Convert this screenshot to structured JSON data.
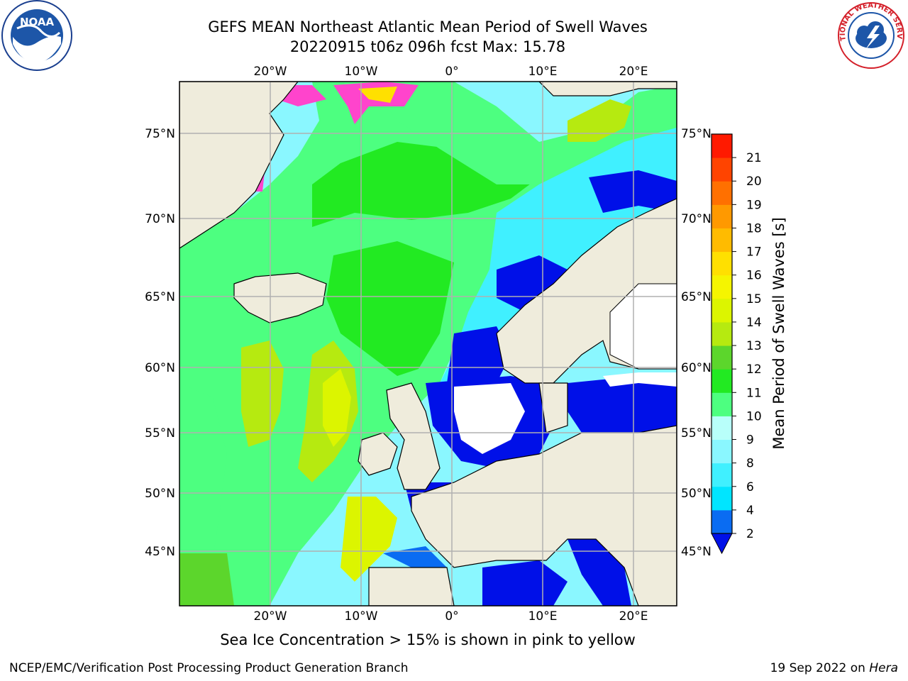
{
  "title_line1": "GEFS MEAN Northeast Atlantic Mean Period of Swell Waves",
  "title_line2": "20220915 t06z 096h fcst   Max: 15.78",
  "logos": {
    "left": "noaa-logo",
    "right": "national-weather-service-logo",
    "right_text": "NATIONAL WEATHER SERVICE"
  },
  "map": {
    "lon_labels": [
      "20°W",
      "10°W",
      "0°",
      "10°E",
      "20°E"
    ],
    "lat_labels": [
      "75°N",
      "70°N",
      "65°N",
      "60°N",
      "55°N",
      "50°N",
      "45°N"
    ],
    "land_color": "#efecdc",
    "grid_color": "#b0b0b0"
  },
  "colorbar": {
    "label": "Mean Period of Swell Waves [s]",
    "ticks": [
      "2",
      "4",
      "6",
      "8",
      "9",
      "10",
      "11",
      "12",
      "13",
      "14",
      "15",
      "16",
      "17",
      "18",
      "19",
      "20",
      "21"
    ],
    "colors": [
      "#0a6cf2",
      "#00e5ff",
      "#40f0ff",
      "#8af7ff",
      "#b8fffa",
      "#4dff80",
      "#22ea22",
      "#5cd62c",
      "#b6ea10",
      "#dcf500",
      "#f5f500",
      "#ffe000",
      "#ffbb00",
      "#ff9900",
      "#ff7000",
      "#ff4400",
      "#ff1a00"
    ],
    "extend_color": "#0010e8"
  },
  "note": "Sea Ice Concentration > 15% is shown in pink to yellow",
  "footer_left": "NCEP/EMC/Verification Post Processing Product Generation Branch",
  "footer_right_prefix": "19 Sep 2022 on ",
  "footer_right_host": "Hera"
}
